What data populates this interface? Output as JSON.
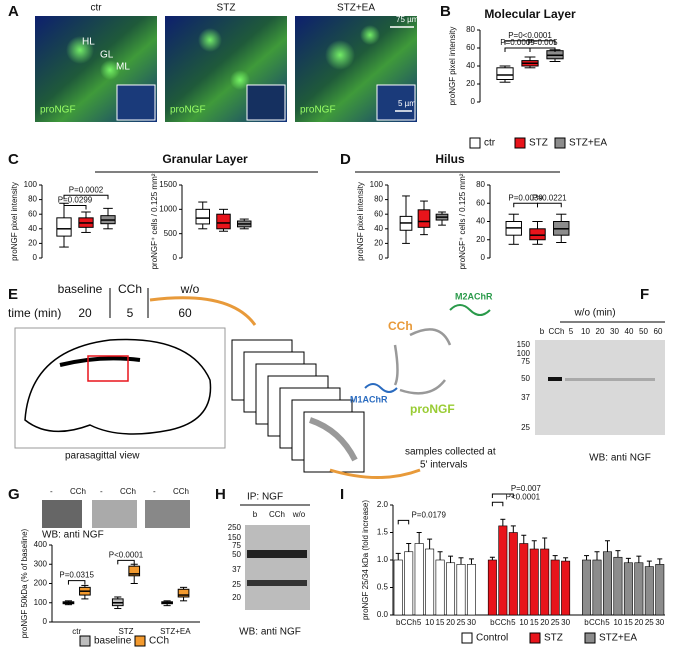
{
  "panel_labels": [
    "A",
    "B",
    "C",
    "D",
    "E",
    "F",
    "G",
    "H",
    "I"
  ],
  "panel_a": {
    "columns": [
      "ctr",
      "STZ",
      "STZ+EA"
    ],
    "stain": "proNGF",
    "regions": [
      "HL",
      "GL",
      "ML"
    ],
    "scale_bars": [
      "75 µm",
      "5 µm"
    ]
  },
  "panel_c": {
    "title": "Granular Layer"
  },
  "panel_d": {
    "title": "Hilus"
  },
  "panel_e": {
    "phases": [
      "baseline",
      "CCh",
      "w/o"
    ],
    "time_label": "time (min)",
    "times": [
      "20",
      "5",
      "60"
    ],
    "view": "parasagittal view",
    "drug": "CCh",
    "receptors": [
      "M2AChR",
      "M1AChR"
    ],
    "product": "proNGF",
    "note": [
      "samples collected at",
      "5' intervals"
    ]
  },
  "panel_f": {
    "title": "w/o (min)",
    "lanes": [
      "b",
      "CCh",
      "5",
      "10",
      "20",
      "30",
      "40",
      "50",
      "60"
    ],
    "markers": [
      "150",
      "100",
      "75",
      "50",
      "37",
      "25"
    ],
    "caption": "WB: anti NGF"
  },
  "panel_g": {
    "lanes": [
      [
        "-",
        "CCh"
      ],
      [
        "-",
        "CCh"
      ],
      [
        "-",
        "CCh"
      ]
    ],
    "caption": "WB: anti NGF"
  },
  "panel_h": {
    "title": "IP: NGF",
    "lanes": [
      "b",
      "CCh",
      "w/o"
    ],
    "markers": [
      "250",
      "150",
      "75",
      "50",
      "37",
      "25",
      "20"
    ],
    "caption": "WB: anti NGF"
  },
  "chart_data": [
    {
      "type": "box",
      "title": "Molecular Layer",
      "ylabel": "proNGF pixel intensity",
      "ylim": [
        0,
        80
      ],
      "yticks": [
        0,
        20,
        40,
        60,
        80
      ],
      "series": [
        {
          "name": "ctr",
          "color": "#ffffff",
          "boxes": [
            [
              22,
              25,
              30,
              38,
              40
            ]
          ]
        },
        {
          "name": "STZ",
          "color": "#e8141b",
          "boxes": [
            [
              38,
              40,
              43,
              46,
              50
            ]
          ]
        },
        {
          "name": "STZ+EA",
          "color": "#8c8c8c",
          "boxes": [
            [
              45,
              48,
              52,
              57,
              58
            ]
          ]
        }
      ],
      "annotations": [
        "P=0<0.0001",
        "P=0.0009",
        "P=0.005"
      ]
    },
    {
      "type": "box",
      "ylabel": "proNGF pixel intensity",
      "ylim": [
        0,
        100
      ],
      "yticks": [
        0,
        20,
        40,
        60,
        80,
        100
      ],
      "series": [
        {
          "color": "#ffffff",
          "boxes": [
            [
              15,
              30,
              40,
              55,
              75
            ]
          ]
        },
        {
          "color": "#e8141b",
          "boxes": [
            [
              35,
              42,
              48,
              55,
              63
            ]
          ]
        },
        {
          "color": "#8c8c8c",
          "boxes": [
            [
              40,
              47,
              52,
              58,
              68
            ]
          ]
        }
      ],
      "annotations": [
        "P=0.0299",
        "P=0.0002"
      ]
    },
    {
      "type": "box",
      "ylabel": "proNGF⁺ cells / 0.125 mm²",
      "ylim": [
        0,
        1500
      ],
      "yticks": [
        0,
        500,
        1000,
        1500
      ],
      "series": [
        {
          "color": "#ffffff",
          "boxes": [
            [
              600,
              700,
              820,
              1000,
              1150
            ]
          ]
        },
        {
          "color": "#e8141b",
          "boxes": [
            [
              550,
              600,
              720,
              900,
              1000
            ]
          ]
        },
        {
          "color": "#8c8c8c",
          "boxes": [
            [
              600,
              640,
              700,
              760,
              800
            ]
          ]
        }
      ],
      "annotations": []
    },
    {
      "type": "box",
      "ylabel": "proNGF pixel intensity",
      "ylim": [
        0,
        100
      ],
      "yticks": [
        0,
        20,
        40,
        60,
        80,
        100
      ],
      "series": [
        {
          "color": "#ffffff",
          "boxes": [
            [
              20,
              38,
              48,
              57,
              85
            ]
          ]
        },
        {
          "color": "#e8141b",
          "boxes": [
            [
              32,
              42,
              50,
              66,
              78
            ]
          ]
        },
        {
          "color": "#8c8c8c",
          "boxes": [
            [
              45,
              52,
              56,
              60,
              63
            ]
          ]
        }
      ],
      "annotations": []
    },
    {
      "type": "box",
      "ylabel": "proNGF⁺ cells / 0.125 mm²",
      "ylim": [
        0,
        80
      ],
      "yticks": [
        0,
        20,
        40,
        60,
        80
      ],
      "series": [
        {
          "color": "#ffffff",
          "boxes": [
            [
              15,
              25,
              33,
              40,
              48
            ]
          ]
        },
        {
          "color": "#e8141b",
          "boxes": [
            [
              15,
              20,
              25,
              32,
              40
            ]
          ]
        },
        {
          "color": "#8c8c8c",
          "boxes": [
            [
              17,
              25,
              32,
              40,
              48
            ]
          ]
        }
      ],
      "annotations": [
        "P=0.0039",
        "P=0.0221"
      ]
    },
    {
      "type": "box",
      "ylabel": "proNGF 50kDa (% of baseline)",
      "ylim": [
        0,
        400
      ],
      "yticks": [
        0,
        100,
        200,
        300,
        400
      ],
      "categories": [
        "ctr",
        "STZ",
        "STZ+EA"
      ],
      "series": [
        {
          "name": "baseline",
          "color": "#bdbdbd",
          "boxes": [
            [
              90,
              95,
              100,
              105,
              110
            ],
            [
              70,
              85,
              100,
              120,
              130
            ],
            [
              85,
              95,
              100,
              105,
              110
            ]
          ]
        },
        {
          "name": "CCh",
          "color": "#f39a2e",
          "boxes": [
            [
              120,
              140,
              160,
              180,
              190
            ],
            [
              200,
              240,
              250,
              290,
              300
            ],
            [
              110,
              130,
              140,
              170,
              180
            ]
          ]
        }
      ],
      "annotations": [
        "P=0.0315",
        "P<0.0001"
      ]
    },
    {
      "type": "bar",
      "ylabel": "proNGF 25/34 kDa (fold increase)",
      "ylim": [
        0,
        2.0
      ],
      "yticks": [
        {
          "value": 0,
          "label": "0.0"
        },
        {
          "value": 0.5,
          "label": "0.5"
        },
        {
          "value": 1,
          "label": "1.0"
        },
        {
          "value": 1.5,
          "label": "1.5"
        },
        {
          "value": 2,
          "label": "2.0"
        }
      ],
      "categories": [
        "b",
        "CCh",
        "5",
        "10",
        "15",
        "20",
        "25",
        "30"
      ],
      "series": [
        {
          "name": "Control",
          "color": "#ffffff",
          "values": [
            1.0,
            1.15,
            1.3,
            1.2,
            1.0,
            0.95,
            0.92,
            0.92
          ],
          "errors": [
            0.12,
            0.15,
            0.2,
            0.18,
            0.15,
            0.12,
            0.12,
            0.1
          ]
        },
        {
          "name": "STZ",
          "color": "#e8141b",
          "values": [
            1.0,
            1.62,
            1.5,
            1.3,
            1.2,
            1.2,
            1.0,
            0.98
          ],
          "errors": [
            0.05,
            0.12,
            0.12,
            0.15,
            0.15,
            0.2,
            0.08,
            0.06
          ]
        },
        {
          "name": "STZ+EA",
          "color": "#8c8c8c",
          "values": [
            1.0,
            1.0,
            1.15,
            1.05,
            0.95,
            0.95,
            0.88,
            0.92
          ],
          "errors": [
            0.08,
            0.15,
            0.2,
            0.12,
            0.08,
            0.12,
            0.1,
            0.1
          ]
        }
      ],
      "annotations": [
        "P=0.0179",
        "P=0.007",
        "P<0.0001"
      ]
    }
  ]
}
